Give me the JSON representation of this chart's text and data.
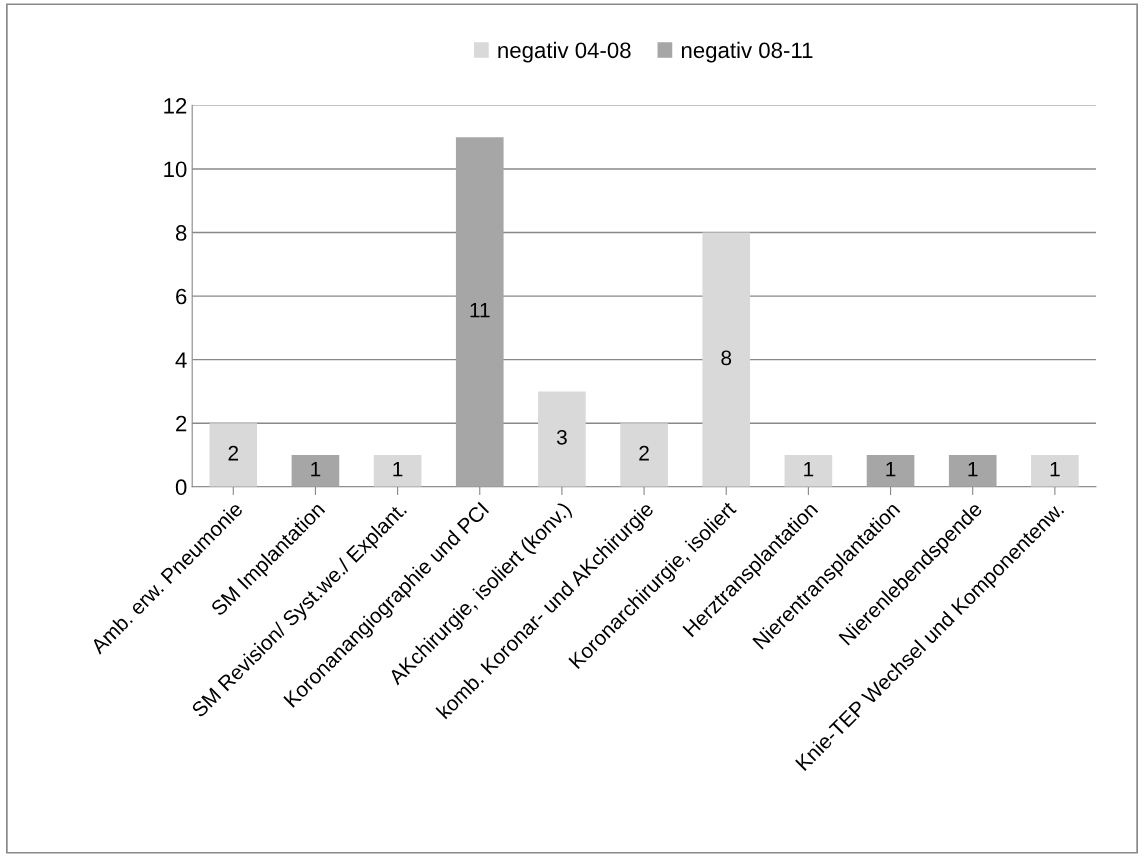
{
  "chart_data": {
    "type": "bar",
    "categories": [
      "Amb. erw. Pneumonie",
      "SM Implantation",
      "SM Revision/ Syst.we./ Explant.",
      "Koronanangiographie und PCI",
      "AKchirurgie, isoliert (konv.)",
      "komb. Koronar- und AKchirurgie",
      "Koronarchirurgie, isoliert",
      "Herztransplantation",
      "Nierentransplantation",
      "Nierenlebendspende",
      "Knie-TEP Wechsel und Komponentenw."
    ],
    "series": [
      {
        "name": "negativ 04-08",
        "color": "#d9d9d9",
        "values": [
          2,
          null,
          1,
          null,
          3,
          2,
          8,
          1,
          null,
          null,
          1
        ]
      },
      {
        "name": "negativ 08-11",
        "color": "#a6a6a6",
        "values": [
          null,
          1,
          null,
          11,
          null,
          null,
          null,
          null,
          1,
          1,
          null
        ]
      }
    ],
    "ylim": [
      0,
      12
    ],
    "yticks": [
      0,
      2,
      4,
      6,
      8,
      10,
      12
    ],
    "grid": "y",
    "legend": "top",
    "data_labels": true
  }
}
